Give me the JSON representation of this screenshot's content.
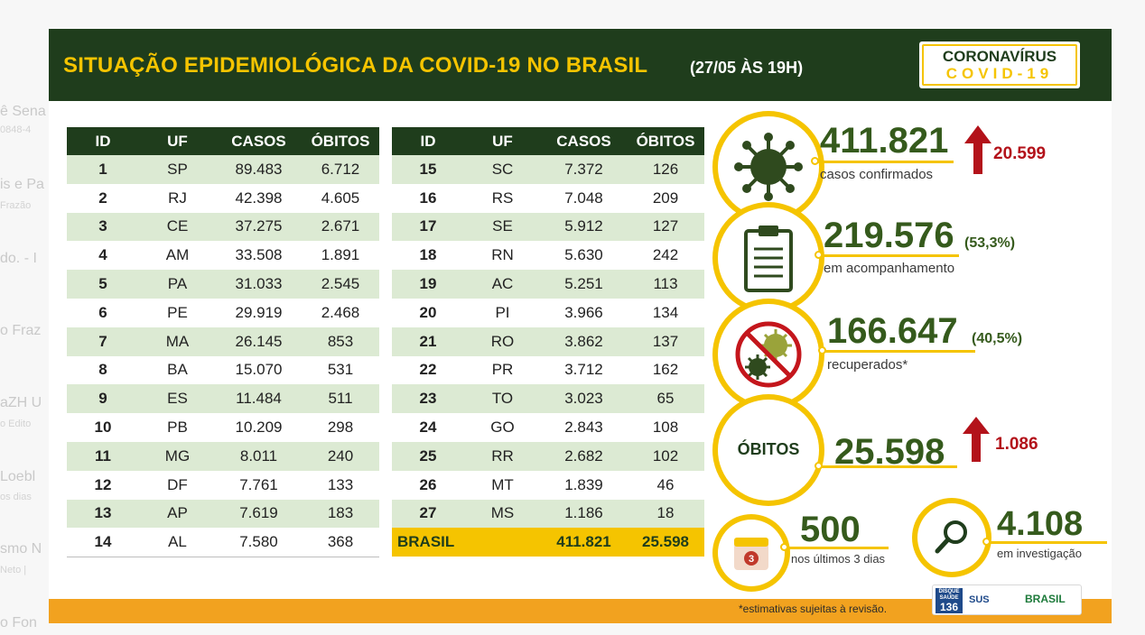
{
  "title": {
    "main": "SITUAÇÃO EPIDEMIOLÓGICA DA COVID-19 NO BRASIL",
    "date": "(27/05 ÀS 19H)"
  },
  "logo": {
    "line1": "CORONAVÍRUS",
    "line2": "COVID-19"
  },
  "table_headers": {
    "id": "ID",
    "uf": "UF",
    "casos": "CASOS",
    "obitos": "ÓBITOS"
  },
  "table_left": [
    {
      "id": "1",
      "uf": "SP",
      "casos": "89.483",
      "obitos": "6.712"
    },
    {
      "id": "2",
      "uf": "RJ",
      "casos": "42.398",
      "obitos": "4.605"
    },
    {
      "id": "3",
      "uf": "CE",
      "casos": "37.275",
      "obitos": "2.671"
    },
    {
      "id": "4",
      "uf": "AM",
      "casos": "33.508",
      "obitos": "1.891"
    },
    {
      "id": "5",
      "uf": "PA",
      "casos": "31.033",
      "obitos": "2.545"
    },
    {
      "id": "6",
      "uf": "PE",
      "casos": "29.919",
      "obitos": "2.468"
    },
    {
      "id": "7",
      "uf": "MA",
      "casos": "26.145",
      "obitos": "853"
    },
    {
      "id": "8",
      "uf": "BA",
      "casos": "15.070",
      "obitos": "531"
    },
    {
      "id": "9",
      "uf": "ES",
      "casos": "11.484",
      "obitos": "511"
    },
    {
      "id": "10",
      "uf": "PB",
      "casos": "10.209",
      "obitos": "298"
    },
    {
      "id": "11",
      "uf": "MG",
      "casos": "8.011",
      "obitos": "240"
    },
    {
      "id": "12",
      "uf": "DF",
      "casos": "7.761",
      "obitos": "133"
    },
    {
      "id": "13",
      "uf": "AP",
      "casos": "7.619",
      "obitos": "183"
    },
    {
      "id": "14",
      "uf": "AL",
      "casos": "7.580",
      "obitos": "368"
    }
  ],
  "table_right": [
    {
      "id": "15",
      "uf": "SC",
      "casos": "7.372",
      "obitos": "126"
    },
    {
      "id": "16",
      "uf": "RS",
      "casos": "7.048",
      "obitos": "209"
    },
    {
      "id": "17",
      "uf": "SE",
      "casos": "5.912",
      "obitos": "127"
    },
    {
      "id": "18",
      "uf": "RN",
      "casos": "5.630",
      "obitos": "242"
    },
    {
      "id": "19",
      "uf": "AC",
      "casos": "5.251",
      "obitos": "113"
    },
    {
      "id": "20",
      "uf": "PI",
      "casos": "3.966",
      "obitos": "134"
    },
    {
      "id": "21",
      "uf": "RO",
      "casos": "3.862",
      "obitos": "137"
    },
    {
      "id": "22",
      "uf": "PR",
      "casos": "3.712",
      "obitos": "162"
    },
    {
      "id": "23",
      "uf": "TO",
      "casos": "3.023",
      "obitos": "65"
    },
    {
      "id": "24",
      "uf": "GO",
      "casos": "2.843",
      "obitos": "108"
    },
    {
      "id": "25",
      "uf": "RR",
      "casos": "2.682",
      "obitos": "102"
    },
    {
      "id": "26",
      "uf": "MT",
      "casos": "1.839",
      "obitos": "46"
    },
    {
      "id": "27",
      "uf": "MS",
      "casos": "1.186",
      "obitos": "18"
    }
  ],
  "total": {
    "label": "BRASIL",
    "casos": "411.821",
    "obitos": "25.598"
  },
  "stats": {
    "confirmed": {
      "value": "411.821",
      "label": "casos confirmados",
      "delta": "20.599"
    },
    "monitoring": {
      "value": "219.576",
      "pct": "(53,3%)",
      "label": "em acompanhamento"
    },
    "recovered": {
      "value": "166.647",
      "pct": "(40,5%)",
      "label": "recuperados*"
    },
    "deaths": {
      "label": "ÓBITOS",
      "value": "25.598",
      "delta": "1.086"
    },
    "last3": {
      "value": "500",
      "label": "nos últimos 3 dias",
      "badge": "3"
    },
    "investigation": {
      "value": "4.108",
      "label": "em investigação"
    }
  },
  "footnote": "*estimativas sujeitas à revisão.",
  "gov": {
    "disque_top": "DISQUE SAÚDE",
    "disque_num": "136",
    "sus": "SUS",
    "brasil": "BRASIL"
  },
  "background_fragments": [
    "ê Sena",
    "0848-4",
    "is e Pa",
    "Frazão",
    "do. - I",
    "o Fraz",
    "aZH U",
    "o Edito",
    "Loebl",
    "os dias",
    "smo N",
    "Neto |",
    "o Fon"
  ],
  "colors": {
    "dark_green": "#1f3d1c",
    "yellow": "#f5c400",
    "orange": "#f2a21f",
    "light_green_row": "#dcead3",
    "red_arrow": "#b3121a",
    "number_green": "#355a1c"
  }
}
